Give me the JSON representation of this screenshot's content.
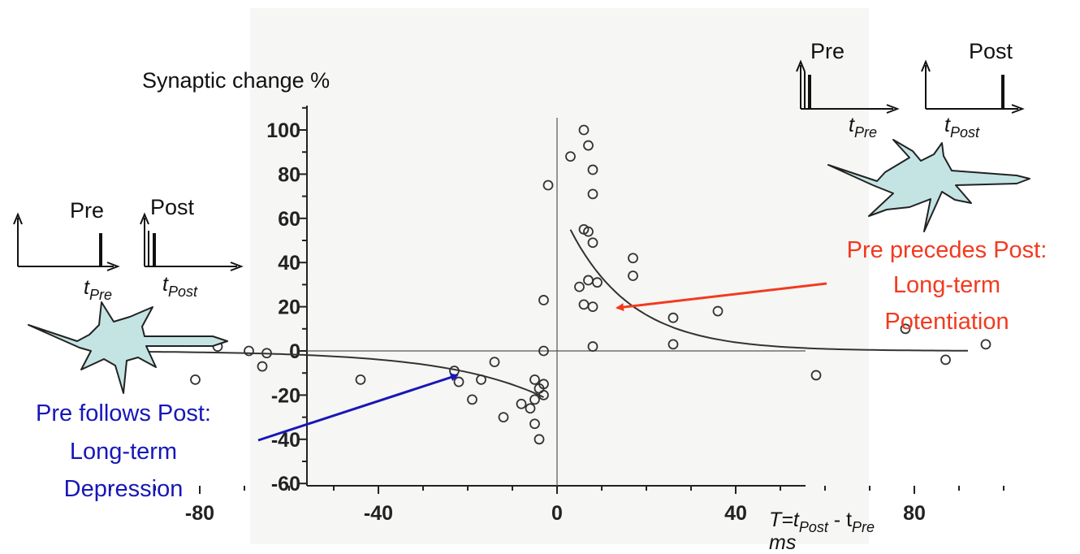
{
  "chart_data": {
    "type": "scatter",
    "ylabel": "Synaptic change %",
    "xlabel_formula": {
      "T": "T=t",
      "post_sub": "Post",
      "minus": " - t",
      "pre_sub": "Pre"
    },
    "xunit": "ms",
    "xlim": [
      -105,
      105
    ],
    "ylim": [
      -60,
      110
    ],
    "xticks": [
      -80,
      -40,
      0,
      40,
      80
    ],
    "yticks": [
      100,
      80,
      60,
      40,
      20,
      0,
      -20,
      -40,
      -60
    ],
    "grid": false,
    "points": [
      [
        -103,
        -1
      ],
      [
        -81,
        -13
      ],
      [
        -76,
        2
      ],
      [
        -69,
        0
      ],
      [
        -66,
        -7
      ],
      [
        -65,
        -1
      ],
      [
        -44,
        -13
      ],
      [
        -23,
        -9
      ],
      [
        -22,
        -14
      ],
      [
        -19,
        -22
      ],
      [
        -17,
        -13
      ],
      [
        -14,
        -5
      ],
      [
        -12,
        -30
      ],
      [
        -8,
        -24
      ],
      [
        -6,
        -26
      ],
      [
        -5,
        -22
      ],
      [
        -5,
        -13
      ],
      [
        -5,
        -33
      ],
      [
        -4,
        -40
      ],
      [
        -4,
        -17
      ],
      [
        -3,
        0
      ],
      [
        -3,
        -20
      ],
      [
        -3,
        -15
      ],
      [
        -3,
        23
      ],
      [
        -2,
        75
      ],
      [
        3,
        88
      ],
      [
        5,
        29
      ],
      [
        6,
        100
      ],
      [
        6,
        55
      ],
      [
        6,
        21
      ],
      [
        7,
        93
      ],
      [
        7,
        54
      ],
      [
        7,
        32
      ],
      [
        8,
        82
      ],
      [
        8,
        71
      ],
      [
        8,
        49
      ],
      [
        8,
        20
      ],
      [
        8,
        2
      ],
      [
        9,
        31
      ],
      [
        17,
        42
      ],
      [
        17,
        34
      ],
      [
        26,
        15
      ],
      [
        26,
        3
      ],
      [
        36,
        18
      ],
      [
        58,
        -11
      ],
      [
        78,
        10
      ],
      [
        87,
        -4
      ],
      [
        96,
        3
      ]
    ],
    "curves": [
      {
        "name": "",
        "color": "#333333",
        "fn": "ltp",
        "a": 68,
        "tau": 14,
        "x_from": 3,
        "x_to": 92
      },
      {
        "name": "",
        "color": "#333333",
        "fn": "ltd",
        "a": -24,
        "tau": 22,
        "x_from": -103,
        "x_to": -3
      }
    ]
  },
  "annotations": {
    "ltp": {
      "line1": "Pre precedes Post:",
      "line2": "Long-term",
      "line3": "Potentiation",
      "color": "#f23a1f"
    },
    "ltd": {
      "line1": "Pre follows Post:",
      "line2": "Long-term",
      "line3": "Depression",
      "color": "#1717b8"
    }
  },
  "spike_diagrams": {
    "ltp": {
      "pre_label": "Pre",
      "post_label": "Post",
      "t_pre": "Pre",
      "t_post": "Post",
      "t": "t"
    },
    "ltd": {
      "pre_label": "Pre",
      "post_label": "Post",
      "t_pre": "Pre",
      "t_post": "Post",
      "t": "t"
    }
  },
  "colors": {
    "neuron_fill": "#c4e4e4",
    "neuron_stroke": "#222222",
    "plot_bg": "#f5f5f3"
  }
}
